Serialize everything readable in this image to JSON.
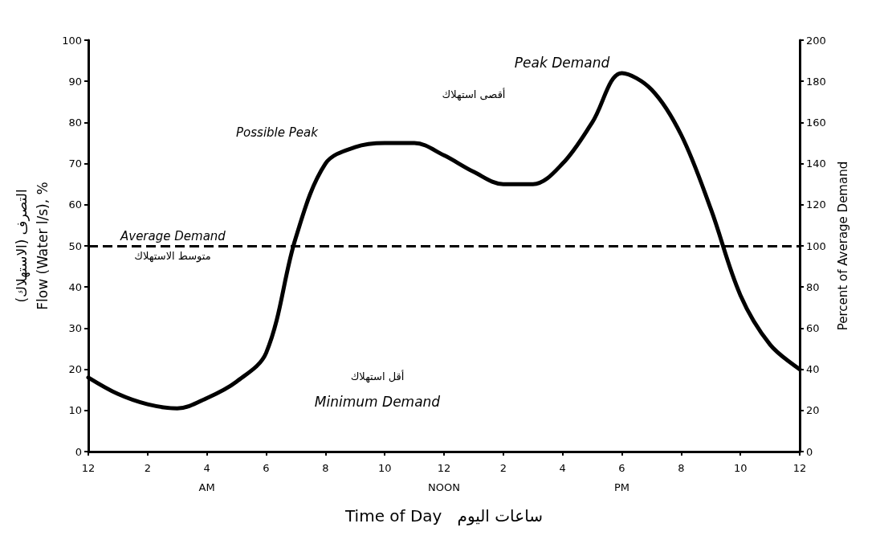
{
  "chart_data": {
    "type": "line",
    "xlabel": "Time of Day   ساعات اليوم",
    "ylabel": "التصرف (الاستهلاك)\nFlow (Water l/s), %",
    "y2label": "Percent of Average Demand",
    "categories": [
      "12",
      null,
      "2",
      null,
      "4\nAM",
      null,
      "6",
      null,
      "8",
      null,
      "10",
      null,
      "12\nNOON",
      null,
      "2",
      null,
      "4",
      null,
      "6\nPM",
      null,
      "8",
      null,
      "10",
      null,
      "12"
    ],
    "series": [
      {
        "color": "#000000",
        "values": [
          18,
          14,
          11.5,
          10.5,
          13,
          17,
          24,
          52,
          70,
          74,
          75,
          75,
          72,
          68,
          65,
          65,
          70,
          80,
          92,
          88,
          77,
          59,
          38,
          26,
          20
        ]
      }
    ],
    "ylim": [
      0,
      100
    ],
    "yticks": [
      0,
      10,
      20,
      30,
      40,
      50,
      60,
      70,
      80,
      90,
      100
    ],
    "y2lim": [
      0,
      200
    ],
    "y2ticks": [
      0,
      20,
      40,
      60,
      80,
      100,
      120,
      140,
      160,
      180,
      200
    ],
    "ref_lines": [
      {
        "axis": "y2",
        "value": 100,
        "label": "Average Demand",
        "line_style": "dashed",
        "color": "#000000"
      }
    ],
    "annotations": [
      "Peak Demand",
      "أقصى استهلاك",
      "Possible Peak",
      "Minimum Demand",
      "أقل استهلاك",
      "متوسط الاستهلاك"
    ],
    "grid": false,
    "marker": "none",
    "line_style": "solid"
  }
}
